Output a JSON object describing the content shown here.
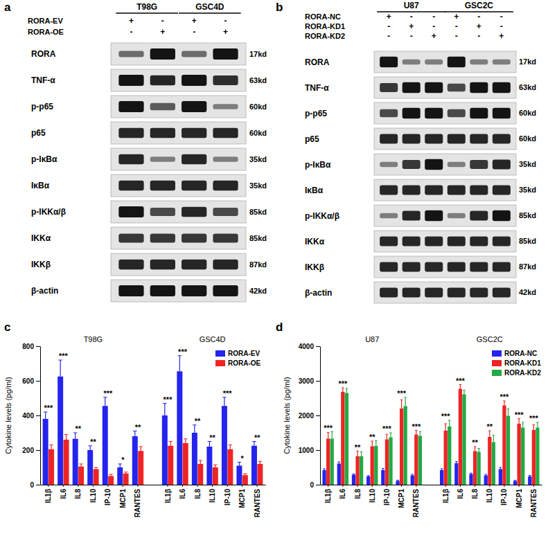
{
  "panel_labels": [
    "a",
    "b",
    "c",
    "d"
  ],
  "blots": [
    {
      "groups": [
        "T98G",
        "GSC4D"
      ],
      "conditions": [
        {
          "label": "RORA-EV",
          "signs": [
            "+",
            "-",
            "+",
            "-"
          ]
        },
        {
          "label": "RORA-OE",
          "signs": [
            "-",
            "+",
            "-",
            "+"
          ]
        }
      ],
      "rows": [
        {
          "protein": "RORA",
          "size": "17kd",
          "levels": [
            0.5,
            1,
            0.5,
            1
          ]
        },
        {
          "protein": "TNF-α",
          "size": "63kd",
          "levels": [
            1,
            0.9,
            1,
            0.85
          ]
        },
        {
          "protein": "p-p65",
          "size": "60kd",
          "levels": [
            1,
            0.6,
            1,
            0.4
          ]
        },
        {
          "protein": "p65",
          "size": "60kd",
          "levels": [
            0.9,
            0.9,
            0.9,
            0.9
          ]
        },
        {
          "protein": "p-IκBα",
          "size": "35kd",
          "levels": [
            0.9,
            0.4,
            0.9,
            0.4
          ]
        },
        {
          "protein": "IκBα",
          "size": "35kd",
          "levels": [
            0.9,
            0.9,
            0.9,
            0.9
          ]
        },
        {
          "protein": "p-IKKα/β",
          "size": "85kd",
          "levels": [
            1,
            0.7,
            0.9,
            0.7
          ]
        },
        {
          "protein": "IKKα",
          "size": "85kd",
          "levels": [
            0.8,
            0.8,
            0.8,
            0.8
          ]
        },
        {
          "protein": "IKKβ",
          "size": "87kd",
          "levels": [
            0.9,
            0.9,
            0.9,
            0.9
          ]
        },
        {
          "protein": "β-actin",
          "size": "42kd",
          "levels": [
            1,
            1,
            1,
            1
          ]
        }
      ]
    },
    {
      "groups": [
        "U87",
        "GSC2C"
      ],
      "conditions": [
        {
          "label": "RORA-NC",
          "signs": [
            "+",
            "-",
            "-",
            "+",
            "-",
            "-"
          ]
        },
        {
          "label": "RORA-KD1",
          "signs": [
            "-",
            "+",
            "-",
            "-",
            "+",
            "-"
          ]
        },
        {
          "label": "RORA-KD2",
          "signs": [
            "-",
            "-",
            "+",
            "-",
            "-",
            "+"
          ]
        }
      ],
      "rows": [
        {
          "protein": "RORA",
          "size": "17kd",
          "levels": [
            1,
            0.4,
            0.4,
            1,
            0.4,
            0.4
          ]
        },
        {
          "protein": "TNF-α",
          "size": "63kd",
          "levels": [
            0.8,
            1,
            1,
            0.7,
            1,
            1
          ]
        },
        {
          "protein": "p-p65",
          "size": "60kd",
          "levels": [
            0.7,
            1,
            1,
            0.7,
            1,
            1
          ]
        },
        {
          "protein": "p65",
          "size": "60kd",
          "levels": [
            0.9,
            0.9,
            0.9,
            0.9,
            0.9,
            0.9
          ]
        },
        {
          "protein": "p-IκBα",
          "size": "35kd",
          "levels": [
            0.4,
            0.8,
            1,
            0.4,
            0.8,
            0.9
          ]
        },
        {
          "protein": "IκBα",
          "size": "35kd",
          "levels": [
            0.9,
            0.9,
            0.9,
            0.9,
            0.9,
            0.9
          ]
        },
        {
          "protein": "p-IKKα/β",
          "size": "85kd",
          "levels": [
            0.4,
            0.9,
            1,
            0.4,
            0.9,
            1
          ]
        },
        {
          "protein": "IKKα",
          "size": "85kd",
          "levels": [
            0.9,
            0.9,
            0.9,
            0.9,
            0.9,
            0.9
          ]
        },
        {
          "protein": "IKKβ",
          "size": "87kd",
          "levels": [
            0.9,
            0.9,
            0.9,
            0.9,
            0.9,
            0.9
          ]
        },
        {
          "protein": "β-actin",
          "size": "42kd",
          "levels": [
            0.9,
            0.9,
            0.9,
            0.9,
            0.9,
            0.9
          ]
        }
      ]
    }
  ],
  "chart_data": [
    {
      "type": "bar",
      "y_label": "Cytokine levels (pg/ml)",
      "annotations": [
        "T98G",
        "GSC4D"
      ],
      "categories": [
        "IL1β",
        "IL6",
        "IL8",
        "IL10",
        "IP-10",
        "MCP1",
        "RANTES",
        null,
        "IL1β",
        "IL6",
        "IL8",
        "IL10",
        "IP-10",
        "MCP1",
        "RANTES"
      ],
      "series": [
        {
          "name": "RORA-EV",
          "color": "#2424ee",
          "values": [
            380,
            625,
            265,
            200,
            455,
            100,
            280,
            null,
            400,
            655,
            300,
            220,
            455,
            110,
            225
          ],
          "errors": [
            40,
            95,
            35,
            25,
            50,
            20,
            30,
            null,
            70,
            90,
            45,
            30,
            50,
            20,
            25
          ]
        },
        {
          "name": "RORA-OE",
          "color": "#ee2424",
          "values": [
            205,
            260,
            105,
            90,
            50,
            65,
            195,
            null,
            225,
            240,
            120,
            100,
            205,
            55,
            120
          ],
          "errors": [
            25,
            30,
            15,
            10,
            10,
            8,
            25,
            null,
            25,
            25,
            20,
            15,
            25,
            8,
            15
          ]
        }
      ],
      "significance": [
        "***",
        "***",
        "**",
        "**",
        "***",
        "*",
        "**",
        null,
        "***",
        "***",
        "**",
        "**",
        "***",
        "*",
        "**"
      ],
      "ylim": [
        0,
        800
      ],
      "yticks": [
        0,
        200,
        400,
        600,
        800
      ],
      "legend": "upper right"
    },
    {
      "type": "bar",
      "y_label": "Cytokine levels (pg/ml)",
      "annotations": [
        "U87",
        "GSC2C"
      ],
      "categories": [
        "IL1β",
        "IL6",
        "IL8",
        "IL10",
        "IP-10",
        "MCP1",
        "RANTES",
        null,
        "IL1β",
        "IL6",
        "IL8",
        "IL10",
        "IP-10",
        "MCP1",
        "RANTES"
      ],
      "series": [
        {
          "name": "RORA-NC",
          "color": "#2424ee",
          "values": [
            420,
            610,
            290,
            240,
            420,
            110,
            270,
            null,
            420,
            620,
            310,
            270,
            450,
            110,
            240
          ],
          "errors": [
            40,
            50,
            25,
            25,
            50,
            20,
            30,
            null,
            40,
            50,
            25,
            30,
            50,
            15,
            30
          ]
        },
        {
          "name": "RORA-KD1",
          "color": "#ee2424",
          "values": [
            1330,
            2680,
            820,
            1110,
            1310,
            2200,
            1450,
            null,
            1560,
            2770,
            970,
            1380,
            2290,
            1760,
            1580
          ],
          "errors": [
            180,
            120,
            150,
            150,
            150,
            250,
            120,
            null,
            200,
            120,
            130,
            180,
            130,
            150,
            150
          ]
        },
        {
          "name": "RORA-KD2",
          "color": "#22aa44",
          "values": [
            1330,
            2650,
            820,
            1120,
            1370,
            2270,
            1410,
            null,
            1680,
            2610,
            950,
            1230,
            1990,
            1650,
            1650
          ],
          "errors": [
            200,
            130,
            130,
            150,
            130,
            250,
            120,
            null,
            180,
            120,
            100,
            200,
            200,
            150,
            150
          ]
        }
      ],
      "significance": [
        "***",
        "***",
        "**",
        "**",
        "***",
        "***",
        "***",
        null,
        "***",
        "***",
        "**",
        "**",
        "***",
        "***",
        "***"
      ],
      "ylim": [
        0,
        4000
      ],
      "yticks": [
        0,
        1000,
        2000,
        3000,
        4000
      ],
      "legend": "upper right"
    }
  ]
}
